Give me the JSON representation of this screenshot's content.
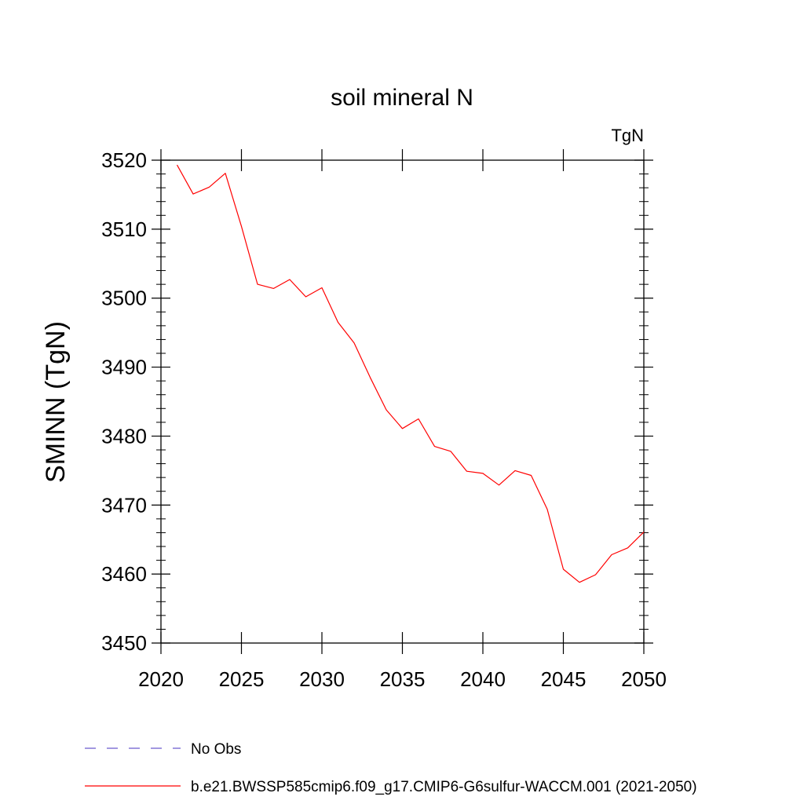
{
  "chart_data": {
    "type": "line",
    "title": "soil mineral N",
    "units": "TgN",
    "ylabel": "SMINN  (TgN)",
    "xlabel": "",
    "xlim": [
      2020,
      2050
    ],
    "ylim": [
      3450,
      3520
    ],
    "xticks": [
      2020,
      2025,
      2030,
      2035,
      2040,
      2045,
      2050
    ],
    "yticks": [
      3450,
      3460,
      3470,
      3480,
      3490,
      3500,
      3510,
      3520
    ],
    "grid": false,
    "legend_position": "bottom",
    "series": [
      {
        "name": "b.e21.BWSSP585cmip6.f09_g17.CMIP6-G6sulfur-WACCM.001 (2021-2050)",
        "color": "#ff0000",
        "dash": "solid",
        "x": [
          2021,
          2022,
          2023,
          2024,
          2025,
          2026,
          2027,
          2028,
          2029,
          2030,
          2031,
          2032,
          2033,
          2034,
          2035,
          2036,
          2037,
          2038,
          2039,
          2040,
          2041,
          2042,
          2043,
          2044,
          2045,
          2046,
          2047,
          2048,
          2049,
          2050
        ],
        "y": [
          3519.3,
          3515.1,
          3516.1,
          3518.1,
          3510.4,
          3502.0,
          3501.4,
          3502.7,
          3500.2,
          3501.5,
          3496.5,
          3493.5,
          3488.5,
          3483.8,
          3481.1,
          3482.5,
          3478.5,
          3477.8,
          3474.9,
          3474.6,
          3472.9,
          3475.0,
          3474.3,
          3469.4,
          3460.7,
          3458.8,
          3459.9,
          3462.8,
          3463.8,
          3466.1
        ]
      }
    ],
    "legend": [
      {
        "label": "No Obs",
        "color": "#6a5acd",
        "dash": "dashed"
      },
      {
        "label": "b.e21.BWSSP585cmip6.f09_g17.CMIP6-G6sulfur-WACCM.001 (2021-2050)",
        "color": "#ff0000",
        "dash": "solid"
      }
    ]
  }
}
